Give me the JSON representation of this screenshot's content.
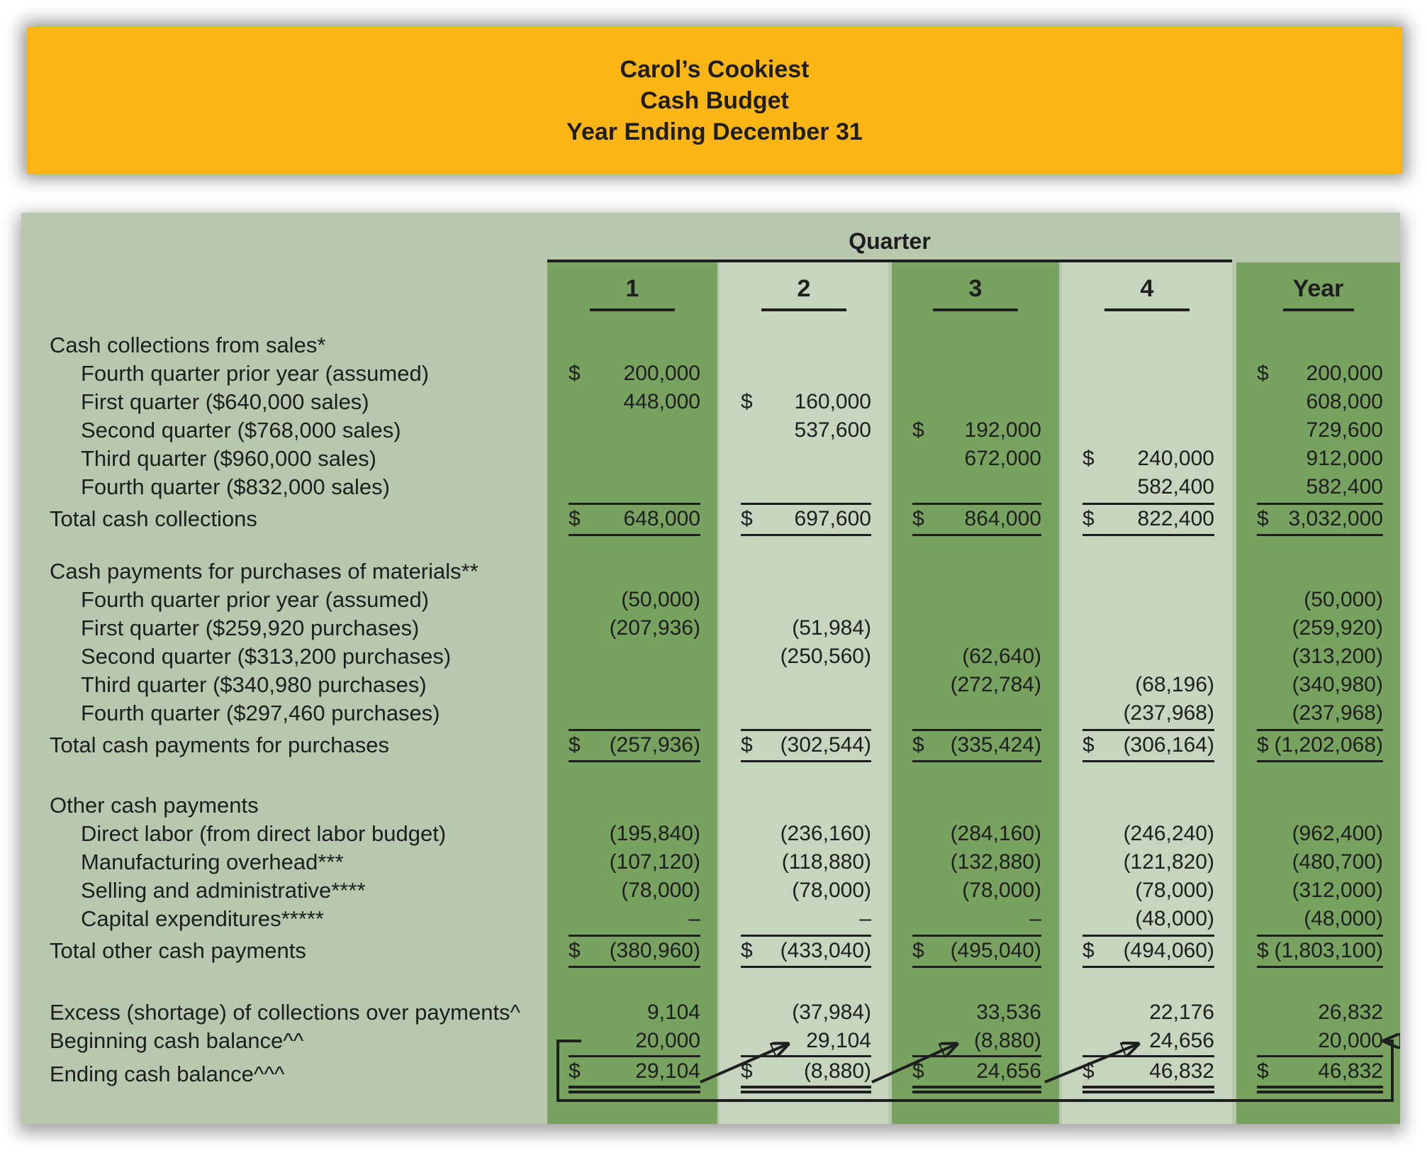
{
  "banner": {
    "line1": "Carol’s Cookiest",
    "line2": "Cash Budget",
    "line3": "Year Ending December 31"
  },
  "table": {
    "quarter_header": "Quarter",
    "columns": [
      "1",
      "2",
      "3",
      "4",
      "Year"
    ],
    "colors": {
      "banner_yellow": "#FBB615",
      "sheet_background": "#B7C8AE",
      "dark_column_band": "#78A260",
      "light_column_band": "#C7D5BE",
      "text": "#1e1e1e"
    },
    "sections": [
      {
        "header": "Cash collections from sales*",
        "rows": [
          {
            "label": "Fourth quarter prior year (assumed)",
            "cells": [
              {
                "d": "$",
                "v": "200,000"
              },
              null,
              null,
              null,
              {
                "d": "$",
                "v": "200,000"
              }
            ]
          },
          {
            "label": "First quarter ($640,000 sales)",
            "cells": [
              {
                "v": "448,000"
              },
              {
                "d": "$",
                "v": "160,000"
              },
              null,
              null,
              {
                "v": "608,000"
              }
            ]
          },
          {
            "label": "Second quarter ($768,000 sales)",
            "cells": [
              null,
              {
                "v": "537,600"
              },
              {
                "d": "$",
                "v": "192,000"
              },
              null,
              {
                "v": "729,600"
              }
            ]
          },
          {
            "label": "Third quarter ($960,000 sales)",
            "cells": [
              null,
              null,
              {
                "v": "672,000"
              },
              {
                "d": "$",
                "v": "240,000"
              },
              {
                "v": "912,000"
              }
            ]
          },
          {
            "label": "Fourth quarter ($832,000 sales)",
            "cells": [
              null,
              null,
              null,
              {
                "v": "582,400"
              },
              {
                "v": "582,400"
              }
            ]
          }
        ],
        "total": {
          "label": "Total cash collections",
          "cells": [
            {
              "d": "$",
              "v": "648,000"
            },
            {
              "d": "$",
              "v": "697,600"
            },
            {
              "d": "$",
              "v": "864,000"
            },
            {
              "d": "$",
              "v": "822,400"
            },
            {
              "d": "$",
              "v": "3,032,000"
            }
          ]
        }
      },
      {
        "header": "Cash payments for purchases of materials**",
        "rows": [
          {
            "label": "Fourth quarter prior year (assumed)",
            "cells": [
              {
                "v": "(50,000)"
              },
              null,
              null,
              null,
              {
                "v": "(50,000)"
              }
            ]
          },
          {
            "label": "First quarter ($259,920 purchases)",
            "cells": [
              {
                "v": "(207,936)"
              },
              {
                "v": "(51,984)"
              },
              null,
              null,
              {
                "v": "(259,920)"
              }
            ]
          },
          {
            "label": "Second quarter ($313,200 purchases)",
            "cells": [
              null,
              {
                "v": "(250,560)"
              },
              {
                "v": "(62,640)"
              },
              null,
              {
                "v": "(313,200)"
              }
            ]
          },
          {
            "label": "Third quarter ($340,980 purchases)",
            "cells": [
              null,
              null,
              {
                "v": "(272,784)"
              },
              {
                "v": "(68,196)"
              },
              {
                "v": "(340,980)"
              }
            ]
          },
          {
            "label": "Fourth quarter ($297,460 purchases)",
            "cells": [
              null,
              null,
              null,
              {
                "v": "(237,968)"
              },
              {
                "v": "(237,968)"
              }
            ]
          }
        ],
        "total": {
          "label": "Total cash payments for purchases",
          "cells": [
            {
              "d": "$",
              "v": "(257,936)"
            },
            {
              "d": "$",
              "v": "(302,544)"
            },
            {
              "d": "$",
              "v": "(335,424)"
            },
            {
              "d": "$",
              "v": "(306,164)"
            },
            {
              "d": "$",
              "v": "(1,202,068)"
            }
          ]
        }
      },
      {
        "header": "Other cash payments",
        "rows": [
          {
            "label": "Direct labor (from direct labor budget)",
            "cells": [
              {
                "v": "(195,840)"
              },
              {
                "v": "(236,160)"
              },
              {
                "v": "(284,160)"
              },
              {
                "v": "(246,240)"
              },
              {
                "v": "(962,400)"
              }
            ]
          },
          {
            "label": "Manufacturing overhead***",
            "cells": [
              {
                "v": "(107,120)"
              },
              {
                "v": "(118,880)"
              },
              {
                "v": "(132,880)"
              },
              {
                "v": "(121,820)"
              },
              {
                "v": "(480,700)"
              }
            ]
          },
          {
            "label": "Selling and administrative****",
            "cells": [
              {
                "v": "(78,000)"
              },
              {
                "v": "(78,000)"
              },
              {
                "v": "(78,000)"
              },
              {
                "v": "(78,000)"
              },
              {
                "v": "(312,000)"
              }
            ]
          },
          {
            "label": "Capital expenditures*****",
            "cells": [
              {
                "v": "–"
              },
              {
                "v": "–"
              },
              {
                "v": "–"
              },
              {
                "v": "(48,000)"
              },
              {
                "v": "(48,000)"
              }
            ]
          }
        ],
        "total": {
          "label": "Total other cash payments",
          "cells": [
            {
              "d": "$",
              "v": "(380,960)"
            },
            {
              "d": "$",
              "v": "(433,040)"
            },
            {
              "d": "$",
              "v": "(495,040)"
            },
            {
              "d": "$",
              "v": "(494,060)"
            },
            {
              "d": "$",
              "v": "(1,803,100)"
            }
          ]
        }
      }
    ],
    "summary": {
      "excess": {
        "label": "Excess (shortage) of collections over payments^",
        "cells": [
          {
            "v": "9,104"
          },
          {
            "v": "(37,984)"
          },
          {
            "v": "33,536"
          },
          {
            "v": "22,176"
          },
          {
            "v": "26,832"
          }
        ]
      },
      "beginning": {
        "label": "Beginning cash balance^^",
        "cells": [
          {
            "v": "20,000"
          },
          {
            "v": "29,104"
          },
          {
            "v": "(8,880)"
          },
          {
            "v": "24,656"
          },
          {
            "v": "20,000"
          }
        ]
      },
      "ending": {
        "label": "Ending cash balance^^^",
        "cells": [
          {
            "d": "$",
            "v": "29,104"
          },
          {
            "d": "$",
            "v": "(8,880)"
          },
          {
            "d": "$",
            "v": "24,656"
          },
          {
            "d": "$",
            "v": "46,832"
          },
          {
            "d": "$",
            "v": "46,832"
          }
        ]
      }
    },
    "flow_arrows": [
      "q1-ending-balance-to-q2-beginning-balance",
      "q2-ending-balance-to-q3-beginning-balance",
      "q3-ending-balance-to-q4-beginning-balance",
      "q1-beginning-balance-loop-to-year-beginning-balance"
    ]
  }
}
